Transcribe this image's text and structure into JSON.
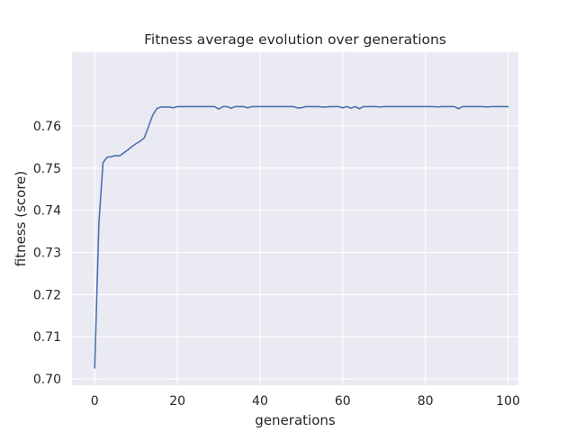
{
  "chart_data": {
    "type": "line",
    "title": "Fitness average evolution over generations",
    "xlabel": "generations",
    "ylabel": "fitness (score)",
    "xlim": [
      -5.5,
      102.5
    ],
    "ylim": [
      0.6985,
      0.7775
    ],
    "xticks": [
      0,
      20,
      40,
      60,
      80,
      100
    ],
    "yticks": [
      0.7,
      0.71,
      0.72,
      0.73,
      0.74,
      0.75,
      0.76
    ],
    "xtick_labels": [
      "0",
      "20",
      "40",
      "60",
      "80",
      "100"
    ],
    "ytick_labels": [
      "0.70",
      "0.71",
      "0.72",
      "0.73",
      "0.74",
      "0.75",
      "0.76"
    ],
    "grid": true,
    "background": "#eaeaf2",
    "line_color": "#4c72b0",
    "series": [
      {
        "x": [
          0,
          1,
          2,
          3,
          4,
          5,
          6,
          7,
          8,
          9,
          10,
          11,
          12,
          13,
          14,
          15,
          16,
          17,
          18,
          19,
          20,
          21,
          22,
          23,
          24,
          25,
          26,
          27,
          28,
          29,
          30,
          31,
          32,
          33,
          34,
          35,
          36,
          37,
          38,
          39,
          40,
          41,
          42,
          43,
          44,
          45,
          46,
          47,
          48,
          49,
          50,
          51,
          52,
          53,
          54,
          55,
          56,
          57,
          58,
          59,
          60,
          61,
          62,
          63,
          64,
          65,
          66,
          67,
          68,
          69,
          70,
          71,
          72,
          73,
          74,
          75,
          76,
          77,
          78,
          79,
          80,
          81,
          82,
          83,
          84,
          85,
          86,
          87,
          88,
          89,
          90,
          91,
          92,
          93,
          94,
          95,
          96,
          97,
          98,
          99,
          100
        ],
        "values": [
          0.7026,
          0.7367,
          0.7513,
          0.7526,
          0.7527,
          0.753,
          0.7529,
          0.7536,
          0.7543,
          0.7551,
          0.7558,
          0.7564,
          0.7572,
          0.7598,
          0.7625,
          0.7641,
          0.7645,
          0.7645,
          0.7645,
          0.7643,
          0.7646,
          0.7646,
          0.7646,
          0.7646,
          0.7646,
          0.7646,
          0.7646,
          0.7646,
          0.7646,
          0.7646,
          0.764,
          0.7646,
          0.7646,
          0.7642,
          0.7646,
          0.7646,
          0.7646,
          0.7643,
          0.7646,
          0.7646,
          0.7646,
          0.7646,
          0.7646,
          0.7646,
          0.7646,
          0.7646,
          0.7646,
          0.7646,
          0.7646,
          0.7643,
          0.7643,
          0.7646,
          0.7646,
          0.7646,
          0.7646,
          0.7645,
          0.7645,
          0.7646,
          0.7646,
          0.7646,
          0.7643,
          0.7646,
          0.7642,
          0.7646,
          0.7641,
          0.7646,
          0.7646,
          0.7646,
          0.7646,
          0.7645,
          0.7646,
          0.7646,
          0.7646,
          0.7646,
          0.7646,
          0.7646,
          0.7646,
          0.7646,
          0.7646,
          0.7646,
          0.7646,
          0.7646,
          0.7646,
          0.7645,
          0.7646,
          0.7646,
          0.7646,
          0.7646,
          0.7641,
          0.7646,
          0.7646,
          0.7646,
          0.7646,
          0.7646,
          0.7646,
          0.7645,
          0.7646,
          0.7646,
          0.7646,
          0.7646,
          0.7646
        ]
      }
    ]
  }
}
